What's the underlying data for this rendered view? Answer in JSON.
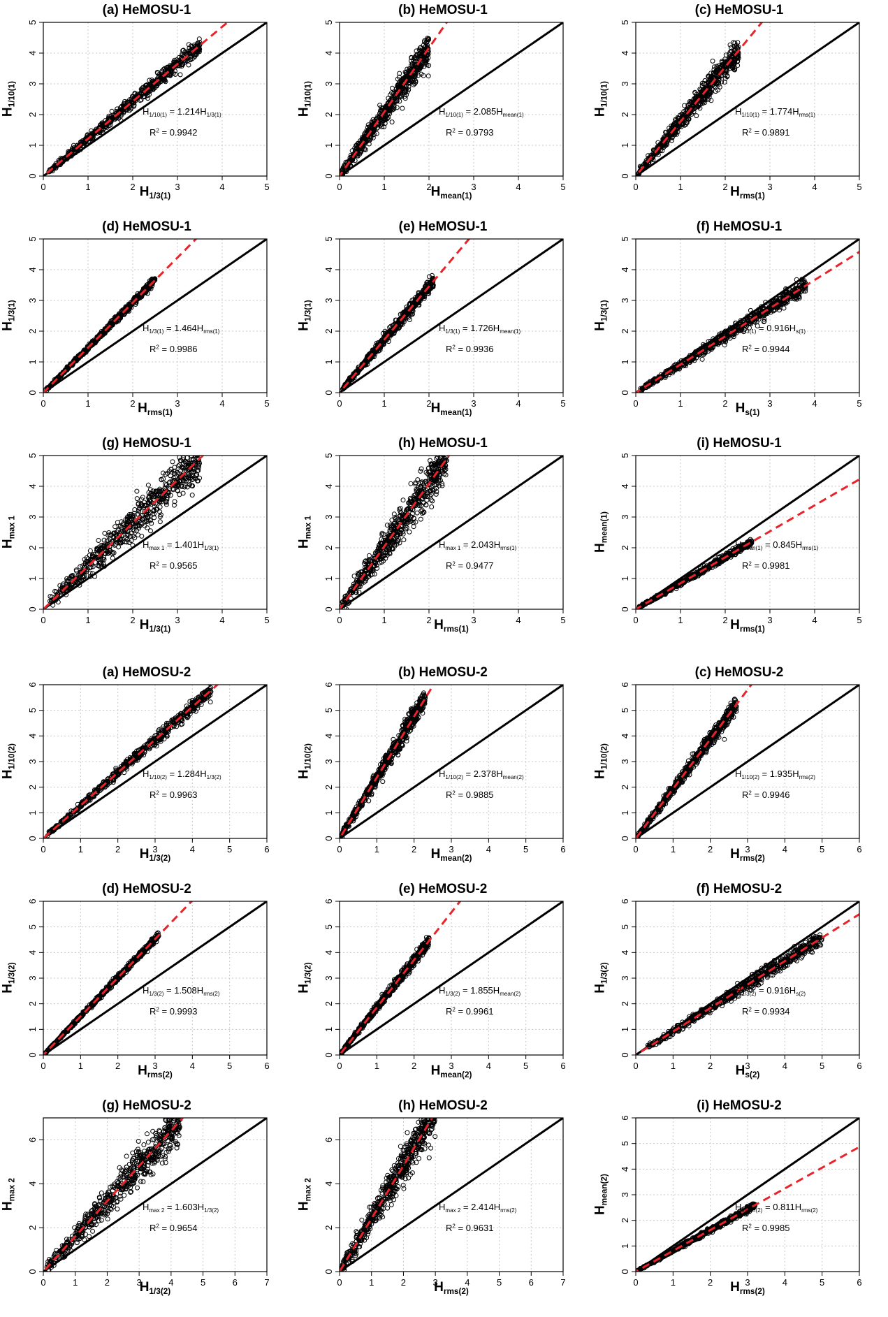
{
  "chart_data": [
    {
      "type": "scatter",
      "title": "(a) HeMOSU-1",
      "xlabel": {
        "base": "H",
        "sub": "1/3(1)"
      },
      "ylabel": {
        "base": "H",
        "sub": "1/10(1)"
      },
      "eq_lhs": {
        "base": "H",
        "sub": "1/10(1)"
      },
      "eq_rhs": {
        "coef": "1.214",
        "base": "H",
        "sub": "1/3(1)"
      },
      "r2": "0.9942",
      "ticks": [
        "0",
        "1",
        "2",
        "3",
        "4",
        "5"
      ],
      "xlim": [
        0,
        5
      ],
      "ylim": [
        0,
        5
      ],
      "slope": 1.214,
      "x_range": [
        0.1,
        3.5
      ],
      "spread": 0.12
    },
    {
      "type": "scatter",
      "title": "(b) HeMOSU-1",
      "xlabel": {
        "base": "H",
        "sub": "mean(1)"
      },
      "ylabel": {
        "base": "H",
        "sub": "1/10(1)"
      },
      "eq_lhs": {
        "base": "H",
        "sub": "1/10(1)"
      },
      "eq_rhs": {
        "coef": "2.085",
        "base": "H",
        "sub": "mean(1)"
      },
      "r2": "0.9793",
      "ticks": [
        "0",
        "1",
        "2",
        "3",
        "4",
        "5"
      ],
      "xlim": [
        0,
        5
      ],
      "ylim": [
        0,
        5
      ],
      "slope": 2.085,
      "x_range": [
        0.05,
        2.0
      ],
      "spread": 0.25
    },
    {
      "type": "scatter",
      "title": "(c) HeMOSU-1",
      "xlabel": {
        "base": "H",
        "sub": "rms(1)"
      },
      "ylabel": {
        "base": "H",
        "sub": "1/10(1)"
      },
      "eq_lhs": {
        "base": "H",
        "sub": "1/10(1)"
      },
      "eq_rhs": {
        "coef": "1.774",
        "base": "H",
        "sub": "rms(1)"
      },
      "r2": "0.9891",
      "ticks": [
        "0",
        "1",
        "2",
        "3",
        "4",
        "5"
      ],
      "xlim": [
        0,
        5
      ],
      "ylim": [
        0,
        5
      ],
      "slope": 1.774,
      "x_range": [
        0.05,
        2.3
      ],
      "spread": 0.2
    },
    {
      "type": "scatter",
      "title": "(d) HeMOSU-1",
      "xlabel": {
        "base": "H",
        "sub": "rms(1)"
      },
      "ylabel": {
        "base": "H",
        "sub": "1/3(1)"
      },
      "eq_lhs": {
        "base": "H",
        "sub": "1/3(1)"
      },
      "eq_rhs": {
        "coef": "1.464",
        "base": "H",
        "sub": "rms(1)"
      },
      "r2": "0.9986",
      "ticks": [
        "0",
        "1",
        "2",
        "3",
        "4",
        "5"
      ],
      "xlim": [
        0,
        5
      ],
      "ylim": [
        0,
        5
      ],
      "slope": 1.464,
      "x_range": [
        0.05,
        2.5
      ],
      "spread": 0.06
    },
    {
      "type": "scatter",
      "title": "(e) HeMOSU-1",
      "xlabel": {
        "base": "H",
        "sub": "mean(1)"
      },
      "ylabel": {
        "base": "H",
        "sub": "1/3(1)"
      },
      "eq_lhs": {
        "base": "H",
        "sub": "1/3(1)"
      },
      "eq_rhs": {
        "coef": "1.726",
        "base": "H",
        "sub": "mean(1)"
      },
      "r2": "0.9936",
      "ticks": [
        "0",
        "1",
        "2",
        "3",
        "4",
        "5"
      ],
      "xlim": [
        0,
        5
      ],
      "ylim": [
        0,
        5
      ],
      "slope": 1.726,
      "x_range": [
        0.05,
        2.1
      ],
      "spread": 0.1
    },
    {
      "type": "scatter",
      "title": "(f) HeMOSU-1",
      "xlabel": {
        "base": "H",
        "sub": "s(1)"
      },
      "ylabel": {
        "base": "H",
        "sub": "1/3(1)"
      },
      "eq_lhs": {
        "base": "H",
        "sub": "1/3(1)"
      },
      "eq_rhs": {
        "coef": "0.916",
        "base": "H",
        "sub": "s(1)"
      },
      "r2": "0.9944",
      "ticks": [
        "0",
        "1",
        "2",
        "3",
        "4",
        "5"
      ],
      "xlim": [
        0,
        5
      ],
      "ylim": [
        0,
        5
      ],
      "slope": 0.916,
      "x_range": [
        0.1,
        3.8
      ],
      "spread": 0.12
    },
    {
      "type": "scatter",
      "title": "(g) HeMOSU-1",
      "xlabel": {
        "base": "H",
        "sub": "1/3(1)"
      },
      "ylabel": {
        "base": "H",
        "sub": "max 1"
      },
      "eq_lhs": {
        "base": "H",
        "sub": "max 1"
      },
      "eq_rhs": {
        "coef": "1.401",
        "base": "H",
        "sub": "1/3(1)"
      },
      "r2": "0.9565",
      "ticks": [
        "0",
        "1",
        "2",
        "3",
        "4",
        "5"
      ],
      "xlim": [
        0,
        5
      ],
      "ylim": [
        0,
        5
      ],
      "slope": 1.401,
      "x_range": [
        0.1,
        3.5
      ],
      "spread": 0.35
    },
    {
      "type": "scatter",
      "title": "(h) HeMOSU-1",
      "xlabel": {
        "base": "H",
        "sub": "rms(1)"
      },
      "ylabel": {
        "base": "H",
        "sub": "max 1"
      },
      "eq_lhs": {
        "base": "H",
        "sub": "max 1"
      },
      "eq_rhs": {
        "coef": "2.043",
        "base": "H",
        "sub": "rms(1)"
      },
      "r2": "0.9477",
      "ticks": [
        "0",
        "1",
        "2",
        "3",
        "4",
        "5"
      ],
      "xlim": [
        0,
        5
      ],
      "ylim": [
        0,
        5
      ],
      "slope": 2.043,
      "x_range": [
        0.05,
        2.4
      ],
      "spread": 0.35
    },
    {
      "type": "scatter",
      "title": "(i) HeMOSU-1",
      "xlabel": {
        "base": "H",
        "sub": "rms(1)"
      },
      "ylabel": {
        "base": "H",
        "sub": "mean(1)"
      },
      "eq_lhs": {
        "base": "H",
        "sub": "mean(1)"
      },
      "eq_rhs": {
        "coef": "0.845",
        "base": "H",
        "sub": "rms(1)"
      },
      "r2": "0.9981",
      "ticks": [
        "0",
        "1",
        "2",
        "3",
        "4",
        "5"
      ],
      "xlim": [
        0,
        5
      ],
      "ylim": [
        0,
        5
      ],
      "slope": 0.845,
      "x_range": [
        0.05,
        2.6
      ],
      "spread": 0.05
    },
    {
      "type": "scatter",
      "title": "(a) HeMOSU-2",
      "xlabel": {
        "base": "H",
        "sub": "1/3(2)"
      },
      "ylabel": {
        "base": "H",
        "sub": "1/10(2)"
      },
      "eq_lhs": {
        "base": "H",
        "sub": "1/10(2)"
      },
      "eq_rhs": {
        "coef": "1.284",
        "base": "H",
        "sub": "1/3(2)"
      },
      "r2": "0.9963",
      "ticks": [
        "0",
        "1",
        "2",
        "3",
        "4",
        "5",
        "6"
      ],
      "xlim": [
        0,
        6
      ],
      "ylim": [
        0,
        6
      ],
      "slope": 1.284,
      "x_range": [
        0.1,
        4.5
      ],
      "spread": 0.12
    },
    {
      "type": "scatter",
      "title": "(b) HeMOSU-2",
      "xlabel": {
        "base": "H",
        "sub": "mean(2)"
      },
      "ylabel": {
        "base": "H",
        "sub": "1/10(2)"
      },
      "eq_lhs": {
        "base": "H",
        "sub": "1/10(2)"
      },
      "eq_rhs": {
        "coef": "2.378",
        "base": "H",
        "sub": "mean(2)"
      },
      "r2": "0.9885",
      "ticks": [
        "0",
        "1",
        "2",
        "3",
        "4",
        "5",
        "6"
      ],
      "xlim": [
        0,
        6
      ],
      "ylim": [
        0,
        6
      ],
      "slope": 2.378,
      "x_range": [
        0.05,
        2.3
      ],
      "spread": 0.2
    },
    {
      "type": "scatter",
      "title": "(c) HeMOSU-2",
      "xlabel": {
        "base": "H",
        "sub": "rms(2)"
      },
      "ylabel": {
        "base": "H",
        "sub": "1/10(2)"
      },
      "eq_lhs": {
        "base": "H",
        "sub": "1/10(2)"
      },
      "eq_rhs": {
        "coef": "1.935",
        "base": "H",
        "sub": "rms(2)"
      },
      "r2": "0.9946",
      "ticks": [
        "0",
        "1",
        "2",
        "3",
        "4",
        "5",
        "6"
      ],
      "xlim": [
        0,
        6
      ],
      "ylim": [
        0,
        6
      ],
      "slope": 1.935,
      "x_range": [
        0.05,
        2.7
      ],
      "spread": 0.15
    },
    {
      "type": "scatter",
      "title": "(d) HeMOSU-2",
      "xlabel": {
        "base": "H",
        "sub": "rms(2)"
      },
      "ylabel": {
        "base": "H",
        "sub": "1/3(2)"
      },
      "eq_lhs": {
        "base": "H",
        "sub": "1/3(2)"
      },
      "eq_rhs": {
        "coef": "1.508",
        "base": "H",
        "sub": "rms(2)"
      },
      "r2": "0.9993",
      "ticks": [
        "0",
        "1",
        "2",
        "3",
        "4",
        "5",
        "6"
      ],
      "xlim": [
        0,
        6
      ],
      "ylim": [
        0,
        6
      ],
      "slope": 1.508,
      "x_range": [
        0.05,
        3.1
      ],
      "spread": 0.06
    },
    {
      "type": "scatter",
      "title": "(e) HeMOSU-2",
      "xlabel": {
        "base": "H",
        "sub": "mean(2)"
      },
      "ylabel": {
        "base": "H",
        "sub": "1/3(2)"
      },
      "eq_lhs": {
        "base": "H",
        "sub": "1/3(2)"
      },
      "eq_rhs": {
        "coef": "1.855",
        "base": "H",
        "sub": "mean(2)"
      },
      "r2": "0.9961",
      "ticks": [
        "0",
        "1",
        "2",
        "3",
        "4",
        "5",
        "6"
      ],
      "xlim": [
        0,
        6
      ],
      "ylim": [
        0,
        6
      ],
      "slope": 1.855,
      "x_range": [
        0.05,
        2.4
      ],
      "spread": 0.1
    },
    {
      "type": "scatter",
      "title": "(f) HeMOSU-2",
      "xlabel": {
        "base": "H",
        "sub": "s(2)"
      },
      "ylabel": {
        "base": "H",
        "sub": "1/3(2)"
      },
      "eq_lhs": {
        "base": "H",
        "sub": "1/3(2)"
      },
      "eq_rhs": {
        "coef": "0.916",
        "base": "H",
        "sub": "s(2)"
      },
      "r2": "0.9934",
      "ticks": [
        "0",
        "1",
        "2",
        "3",
        "4",
        "5",
        "6"
      ],
      "xlim": [
        0,
        6
      ],
      "ylim": [
        0,
        6
      ],
      "slope": 0.916,
      "x_range": [
        0.3,
        5.0
      ],
      "spread": 0.14
    },
    {
      "type": "scatter",
      "title": "(g) HeMOSU-2",
      "xlabel": {
        "base": "H",
        "sub": "1/3(2)"
      },
      "ylabel": {
        "base": "H",
        "sub": "max 2"
      },
      "eq_lhs": {
        "base": "H",
        "sub": "max 2"
      },
      "eq_rhs": {
        "coef": "1.603",
        "base": "H",
        "sub": "1/3(2)"
      },
      "r2": "0.9654",
      "ticks": [
        "0",
        "2",
        "4",
        "6"
      ],
      "xticks": [
        "0",
        "1",
        "2",
        "3",
        "4",
        "5",
        "6",
        "7"
      ],
      "xlim": [
        0,
        7
      ],
      "ylim": [
        0,
        7
      ],
      "slope": 1.603,
      "x_range": [
        0.1,
        4.3
      ],
      "spread": 0.45
    },
    {
      "type": "scatter",
      "title": "(h) HeMOSU-2",
      "xlabel": {
        "base": "H",
        "sub": "rms(2)"
      },
      "ylabel": {
        "base": "H",
        "sub": "max 2"
      },
      "eq_lhs": {
        "base": "H",
        "sub": "max 2"
      },
      "eq_rhs": {
        "coef": "2.414",
        "base": "H",
        "sub": "rms(2)"
      },
      "r2": "0.9631",
      "ticks": [
        "0",
        "2",
        "4",
        "6"
      ],
      "xticks": [
        "0",
        "1",
        "2",
        "3",
        "4",
        "5",
        "6",
        "7"
      ],
      "xlim": [
        0,
        7
      ],
      "ylim": [
        0,
        7
      ],
      "slope": 2.414,
      "x_range": [
        0.05,
        3.0
      ],
      "spread": 0.45
    },
    {
      "type": "scatter",
      "title": "(i) HeMOSU-2",
      "xlabel": {
        "base": "H",
        "sub": "rms(2)"
      },
      "ylabel": {
        "base": "H",
        "sub": "mean(2)"
      },
      "eq_lhs": {
        "base": "H",
        "sub": "mean(2)"
      },
      "eq_rhs": {
        "coef": "0.811",
        "base": "H",
        "sub": "rms(2)"
      },
      "r2": "0.9985",
      "ticks": [
        "0",
        "1",
        "2",
        "3",
        "4",
        "5",
        "6"
      ],
      "xlim": [
        0,
        6
      ],
      "ylim": [
        0,
        6
      ],
      "slope": 0.811,
      "x_range": [
        0.05,
        3.2
      ],
      "spread": 0.05
    }
  ],
  "colors": {
    "points": "#000000",
    "identity_line": "#000000",
    "fit_line": "#e8242a",
    "grid": "#c8c8c8"
  }
}
